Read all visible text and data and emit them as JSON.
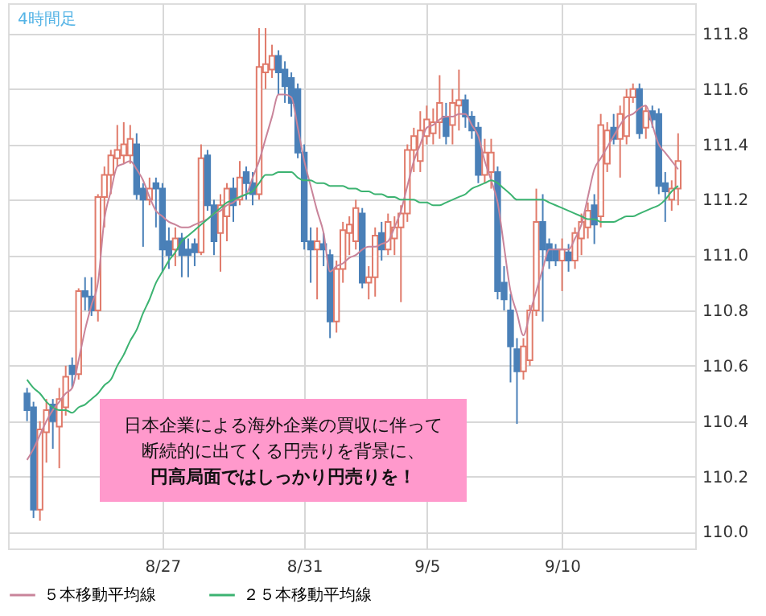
{
  "chart_data": {
    "type": "candlestick",
    "categories": [
      null,
      null,
      null,
      null,
      null,
      null,
      null,
      null,
      null,
      null,
      null,
      null,
      null,
      null,
      null,
      null,
      null,
      null,
      null,
      null,
      null,
      "8/27",
      null,
      null,
      null,
      null,
      null,
      null,
      null,
      null,
      null,
      null,
      null,
      null,
      null,
      null,
      null,
      null,
      null,
      null,
      null,
      null,
      null,
      "8/31",
      null,
      null,
      null,
      null,
      null,
      null,
      null,
      null,
      null,
      null,
      null,
      null,
      null,
      null,
      null,
      null,
      null,
      null,
      "9/5",
      null,
      null,
      null,
      null,
      null,
      null,
      null,
      null,
      null,
      null,
      null,
      null,
      null,
      null,
      null,
      null,
      null,
      null,
      null,
      null,
      "9/10",
      null,
      null,
      null,
      null,
      null,
      null,
      null,
      null,
      null,
      null,
      null,
      null,
      null,
      null,
      null,
      null,
      null,
      null
    ],
    "ohlc": [
      [
        110.5,
        110.52,
        110.4,
        110.44
      ],
      [
        110.45,
        110.47,
        110.05,
        110.08
      ],
      [
        110.08,
        110.4,
        110.04,
        110.37
      ],
      [
        110.36,
        110.48,
        110.25,
        110.44
      ],
      [
        110.46,
        110.48,
        110.3,
        110.4
      ],
      [
        110.38,
        110.52,
        110.23,
        110.48
      ],
      [
        110.45,
        110.6,
        110.42,
        110.56
      ],
      [
        110.6,
        110.63,
        110.52,
        110.57
      ],
      [
        110.57,
        110.88,
        110.55,
        110.87
      ],
      [
        110.87,
        110.92,
        110.8,
        110.85
      ],
      [
        110.85,
        110.92,
        110.78,
        110.8
      ],
      [
        110.8,
        111.22,
        110.76,
        111.21
      ],
      [
        111.21,
        111.32,
        111.1,
        111.29
      ],
      [
        111.29,
        111.38,
        111.22,
        111.36
      ],
      [
        111.35,
        111.47,
        111.32,
        111.38
      ],
      [
        111.36,
        111.48,
        111.33,
        111.4
      ],
      [
        111.36,
        111.47,
        111.33,
        111.42
      ],
      [
        111.4,
        111.44,
        111.2,
        111.22
      ],
      [
        111.24,
        111.26,
        111.03,
        111.2
      ],
      [
        111.2,
        111.28,
        111.18,
        111.24
      ],
      [
        111.26,
        111.28,
        111.1,
        111.24
      ],
      [
        111.24,
        111.26,
        110.94,
        111.02
      ],
      [
        111.05,
        111.1,
        110.95,
        111.0
      ],
      [
        111.02,
        111.1,
        110.96,
        111.06
      ],
      [
        111.06,
        111.08,
        110.92,
        111.0
      ],
      [
        111.02,
        111.06,
        110.92,
        111.0
      ],
      [
        111.04,
        111.06,
        110.96,
        111.01
      ],
      [
        111.01,
        111.4,
        111.0,
        111.35
      ],
      [
        111.36,
        111.38,
        111.16,
        111.18
      ],
      [
        111.18,
        111.2,
        111.0,
        111.05
      ],
      [
        111.08,
        111.22,
        110.94,
        111.18
      ],
      [
        111.14,
        111.26,
        111.05,
        111.24
      ],
      [
        111.24,
        111.28,
        111.12,
        111.18
      ],
      [
        111.2,
        111.34,
        111.18,
        111.28
      ],
      [
        111.3,
        111.32,
        111.2,
        111.26
      ],
      [
        111.26,
        111.3,
        111.18,
        111.22
      ],
      [
        111.22,
        111.82,
        111.2,
        111.68
      ],
      [
        111.66,
        111.82,
        111.6,
        111.69
      ],
      [
        111.67,
        111.76,
        111.64,
        111.72
      ],
      [
        111.72,
        111.74,
        111.58,
        111.66
      ],
      [
        111.67,
        111.7,
        111.55,
        111.61
      ],
      [
        111.64,
        111.66,
        111.5,
        111.55
      ],
      [
        111.6,
        111.62,
        111.35,
        111.37
      ],
      [
        111.37,
        111.4,
        111.02,
        111.05
      ],
      [
        111.05,
        111.1,
        110.9,
        111.02
      ],
      [
        111.02,
        111.1,
        110.84,
        111.05
      ],
      [
        111.04,
        111.08,
        110.96,
        111.02
      ],
      [
        111.0,
        111.02,
        110.7,
        110.76
      ],
      [
        110.76,
        110.98,
        110.72,
        110.95
      ],
      [
        110.95,
        111.12,
        110.9,
        111.09
      ],
      [
        111.08,
        111.14,
        111.0,
        111.11
      ],
      [
        111.05,
        111.2,
        111.02,
        111.17
      ],
      [
        111.15,
        111.17,
        110.88,
        110.9
      ],
      [
        110.9,
        110.96,
        110.84,
        110.92
      ],
      [
        110.92,
        111.1,
        110.85,
        111.07
      ],
      [
        111.08,
        111.12,
        110.98,
        111.02
      ],
      [
        111.02,
        111.15,
        111.0,
        111.12
      ],
      [
        111.06,
        111.14,
        111.0,
        111.1
      ],
      [
        111.1,
        111.18,
        110.83,
        111.15
      ],
      [
        111.15,
        111.4,
        111.12,
        111.38
      ],
      [
        111.38,
        111.46,
        111.3,
        111.43
      ],
      [
        111.34,
        111.52,
        111.3,
        111.45
      ],
      [
        111.43,
        111.54,
        111.4,
        111.49
      ],
      [
        111.44,
        111.53,
        111.4,
        111.48
      ],
      [
        111.48,
        111.65,
        111.42,
        111.55
      ],
      [
        111.5,
        111.55,
        111.4,
        111.43
      ],
      [
        111.47,
        111.6,
        111.4,
        111.55
      ],
      [
        111.54,
        111.67,
        111.45,
        111.56
      ],
      [
        111.56,
        111.58,
        111.46,
        111.5
      ],
      [
        111.5,
        111.52,
        111.42,
        111.45
      ],
      [
        111.46,
        111.48,
        111.26,
        111.29
      ],
      [
        111.29,
        111.42,
        111.26,
        111.37
      ],
      [
        111.3,
        111.42,
        111.24,
        111.37
      ],
      [
        111.3,
        111.32,
        110.84,
        110.87
      ],
      [
        110.9,
        110.96,
        110.8,
        110.84
      ],
      [
        110.8,
        110.86,
        110.54,
        110.67
      ],
      [
        110.66,
        110.7,
        110.39,
        110.58
      ],
      [
        110.58,
        110.7,
        110.55,
        110.67
      ],
      [
        110.62,
        110.82,
        110.6,
        110.8
      ],
      [
        110.8,
        111.24,
        110.78,
        111.12
      ],
      [
        111.12,
        111.22,
        110.76,
        111.02
      ],
      [
        111.04,
        111.06,
        110.95,
        110.98
      ],
      [
        111.02,
        111.04,
        110.96,
        110.98
      ],
      [
        110.98,
        111.06,
        110.87,
        111.02
      ],
      [
        111.01,
        111.04,
        110.94,
        110.98
      ],
      [
        110.98,
        111.1,
        110.95,
        111.08
      ],
      [
        111.06,
        111.15,
        111.0,
        111.12
      ],
      [
        111.1,
        111.19,
        111.06,
        111.16
      ],
      [
        111.18,
        111.22,
        111.04,
        111.11
      ],
      [
        111.14,
        111.51,
        111.1,
        111.47
      ],
      [
        111.33,
        111.48,
        111.3,
        111.45
      ],
      [
        111.46,
        111.51,
        111.4,
        111.42
      ],
      [
        111.42,
        111.54,
        111.28,
        111.51
      ],
      [
        111.43,
        111.6,
        111.4,
        111.57
      ],
      [
        111.57,
        111.62,
        111.55,
        111.6
      ],
      [
        111.6,
        111.62,
        111.42,
        111.44
      ],
      [
        111.46,
        111.54,
        111.42,
        111.52
      ],
      [
        111.52,
        111.54,
        111.46,
        111.49
      ],
      [
        111.51,
        111.53,
        111.22,
        111.25
      ],
      [
        111.26,
        111.3,
        111.12,
        111.23
      ],
      [
        111.2,
        111.27,
        111.16,
        111.24
      ],
      [
        111.24,
        111.44,
        111.18,
        111.34
      ]
    ],
    "series": [
      {
        "name": "５本移動平均線",
        "type": "line",
        "color": "#c9849a",
        "values": [
          110.26,
          110.3,
          110.35,
          110.4,
          110.44,
          110.47,
          110.5,
          110.52,
          110.62,
          110.73,
          110.82,
          110.9,
          111.13,
          111.23,
          111.32,
          111.33,
          111.34,
          111.31,
          111.27,
          111.21,
          111.16,
          111.14,
          111.12,
          111.11,
          111.1,
          111.1,
          111.11,
          111.12,
          111.13,
          111.15,
          111.16,
          111.18,
          111.19,
          111.21,
          111.22,
          111.28,
          111.34,
          111.42,
          111.5,
          111.58,
          111.58,
          111.57,
          111.46,
          111.34,
          111.25,
          111.16,
          111.08,
          110.94,
          110.96,
          110.97,
          110.99,
          111.0,
          111.02,
          111.03,
          111.03,
          111.04,
          111.05,
          111.1,
          111.16,
          111.25,
          111.34,
          111.4,
          111.46,
          111.47,
          111.49,
          111.5,
          111.5,
          111.51,
          111.51,
          111.47,
          111.43,
          111.34,
          111.27,
          111.19,
          111.03,
          110.87,
          110.79,
          110.71,
          110.79,
          110.87,
          110.95,
          111.02,
          111.02,
          111.02,
          111.02,
          111.06,
          111.11,
          111.21,
          111.31,
          111.35,
          111.39,
          111.43,
          111.47,
          111.5,
          111.51,
          111.53,
          111.54,
          111.47,
          111.4,
          111.37,
          111.34,
          111.31
        ]
      },
      {
        "name": "２５本移動平均線",
        "type": "line",
        "color": "#3cb371",
        "values": [
          110.55,
          110.52,
          110.5,
          110.47,
          110.45,
          110.44,
          110.44,
          110.43,
          110.45,
          110.46,
          110.48,
          110.5,
          110.53,
          110.55,
          110.6,
          110.64,
          110.69,
          110.73,
          110.79,
          110.84,
          110.9,
          110.94,
          110.98,
          111.01,
          111.05,
          111.07,
          111.09,
          111.11,
          111.13,
          111.15,
          111.17,
          111.19,
          111.2,
          111.21,
          111.22,
          111.23,
          111.26,
          111.29,
          111.29,
          111.3,
          111.3,
          111.3,
          111.28,
          111.27,
          111.27,
          111.26,
          111.26,
          111.25,
          111.25,
          111.25,
          111.24,
          111.24,
          111.23,
          111.23,
          111.22,
          111.22,
          111.21,
          111.21,
          111.2,
          111.2,
          111.2,
          111.19,
          111.19,
          111.18,
          111.18,
          111.19,
          111.2,
          111.21,
          111.22,
          111.24,
          111.25,
          111.26,
          111.27,
          111.26,
          111.24,
          111.22,
          111.2,
          111.2,
          111.2,
          111.2,
          111.2,
          111.19,
          111.18,
          111.17,
          111.16,
          111.15,
          111.14,
          111.13,
          111.13,
          111.12,
          111.12,
          111.12,
          111.13,
          111.14,
          111.14,
          111.15,
          111.16,
          111.17,
          111.18,
          111.2,
          111.23,
          111.25
        ]
      }
    ],
    "ylim": [
      109.94,
      111.91
    ],
    "yticks": [
      {
        "value": 110,
        "label": "110.0"
      },
      110.2,
      110.4,
      110.6,
      110.8,
      {
        "value": 111,
        "label": "111.0"
      },
      111.2,
      111.4,
      111.6,
      111.8
    ],
    "grid": true,
    "legend": "bottom",
    "annotations": [
      "4時間足",
      "日本企業による海外企業の買収に伴って",
      "断続的に出てくる円売りを背景に、",
      "円高局面ではしっかり円売りを！"
    ]
  }
}
